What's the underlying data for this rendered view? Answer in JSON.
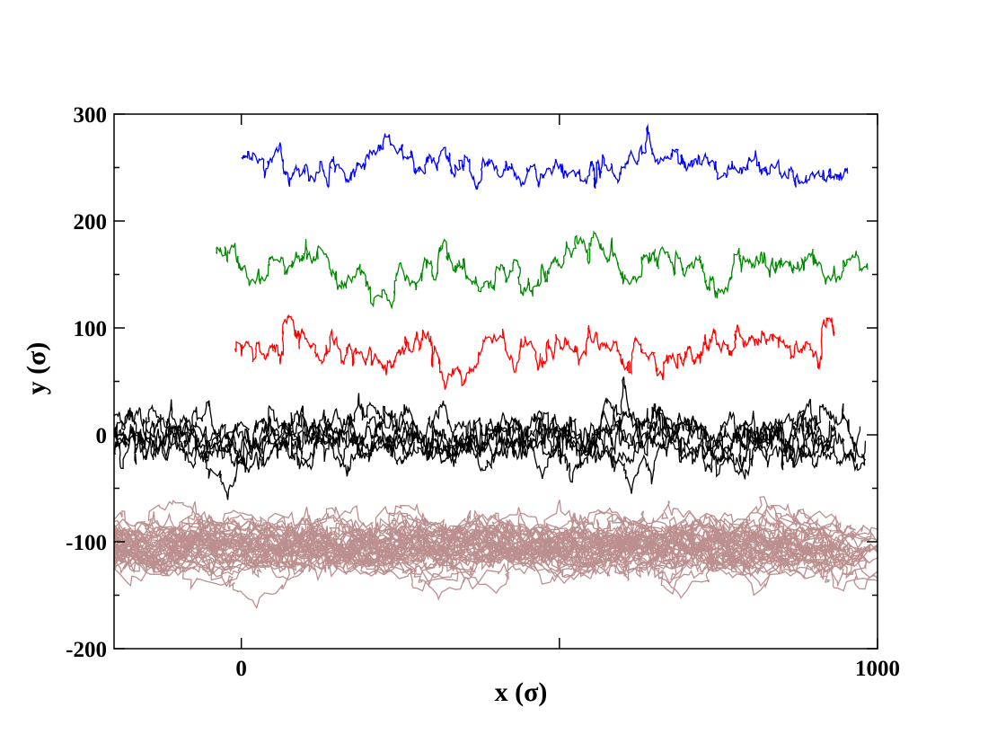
{
  "chart_data": {
    "type": "line",
    "title": "",
    "xlabel": "x (σ)",
    "ylabel": "y (σ)",
    "xlim": [
      -200,
      1000
    ],
    "ylim": [
      -200,
      300
    ],
    "x_ticks": [
      0,
      1000
    ],
    "x_minor_ticks": [
      500
    ],
    "y_ticks": [
      -200,
      -100,
      0,
      100,
      200,
      300
    ],
    "grid": false,
    "legend": "none",
    "series": [
      {
        "color": "#0000ff",
        "x_range": [
          0,
          1000
        ],
        "y_center": 250,
        "y_spread": 25,
        "trace_count": 1
      },
      {
        "color": "#008800",
        "x_range": [
          -40,
          1000
        ],
        "y_center": 160,
        "y_spread": 30,
        "trace_count": 1
      },
      {
        "color": "#ff0000",
        "x_range": [
          -10,
          1000
        ],
        "y_center": 80,
        "y_spread": 30,
        "trace_count": 1
      },
      {
        "color": "#000000",
        "x_range": [
          -200,
          1000
        ],
        "y_center": 0,
        "y_spread": 35,
        "trace_count": 6
      },
      {
        "color": "#bc8f8f",
        "x_range": [
          -200,
          1000
        ],
        "y_center": -100,
        "y_spread": 35,
        "trace_count": 40
      }
    ]
  }
}
